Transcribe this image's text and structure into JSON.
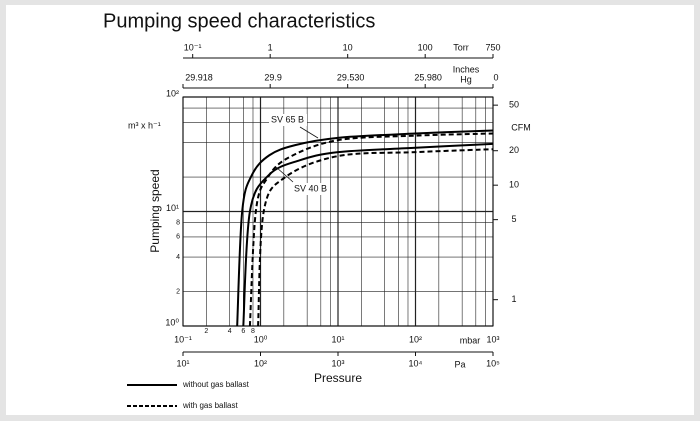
{
  "chart_data": {
    "type": "line",
    "title": "Pumping speed characteristics",
    "y_label": "Pumping speed",
    "y_unit": "m³ x h⁻¹",
    "x_label": "Pressure",
    "x_unit": "mbar",
    "log_x": true,
    "log_y": true,
    "grid": true,
    "xlim": [
      0.1,
      1000
    ],
    "xticks": [
      {
        "value": 0.1,
        "label": "10⁻¹"
      },
      {
        "value": 0.2,
        "label": "2"
      },
      {
        "value": 0.4,
        "label": "4"
      },
      {
        "value": 0.6,
        "label": "6"
      },
      {
        "value": 0.8,
        "label": "8"
      },
      {
        "value": 1,
        "label": "10⁰"
      },
      {
        "value": 10,
        "label": "10¹"
      },
      {
        "value": 100,
        "label": "10²"
      },
      {
        "value": 1000,
        "label": "10³"
      }
    ],
    "xgrid": [
      2,
      4,
      6,
      8,
      20,
      40,
      60,
      80,
      200,
      400,
      600,
      800
    ],
    "ylim": [
      1,
      100
    ],
    "yticks": [
      {
        "value": 1,
        "label": "10⁰"
      },
      2,
      4,
      6,
      8,
      {
        "value": 10,
        "label": "10¹"
      },
      {
        "value": 100,
        "label": "10²"
      }
    ],
    "ygrid": [
      20,
      40,
      60,
      80
    ],
    "y2_unit": "CFM",
    "y2lim": [
      0.589,
      58.9
    ],
    "y2ticks": [
      1,
      5,
      10,
      20,
      50
    ],
    "torr_unit": "Torr",
    "torr_lim": [
      0.075,
      750
    ],
    "torr_ticks": [
      {
        "value": 0.1,
        "label": "10⁻¹"
      },
      1,
      10,
      100,
      750
    ],
    "inhg_unit": [
      "Inches",
      "Hg"
    ],
    "inhg_ticks": [
      29.918,
      29.9,
      {
        "value": 29.53,
        "label": "29.530"
      },
      {
        "value": 25.98,
        "label": "25.980"
      },
      0
    ],
    "pa_unit": "Pa",
    "pa_lim": [
      10,
      100000
    ],
    "pa_ticks": [
      {
        "value": 10,
        "label": "10¹"
      },
      {
        "value": 100,
        "label": "10²"
      },
      {
        "value": 1000,
        "label": "10³"
      },
      {
        "value": 10000,
        "label": "10⁴"
      },
      {
        "value": 100000,
        "label": "10⁵"
      }
    ],
    "annotations": [
      "SV 65 B",
      "SV 40 B"
    ],
    "legend": [
      {
        "label": "without gas ballast",
        "dash": "solid"
      },
      {
        "label": "with gas ballast",
        "dash": "dashed"
      }
    ],
    "series": [
      {
        "dash": "solid",
        "color": "#000000",
        "x": [
          0.5,
          0.58,
          0.78,
          1.3,
          2.8,
          10,
          100,
          1000
        ],
        "values": [
          1,
          10,
          21,
          31,
          38,
          44,
          48,
          51
        ]
      },
      {
        "dash": "dashed",
        "color": "#000000",
        "x": [
          0.73,
          0.87,
          1.25,
          2.4,
          10,
          100,
          1000
        ],
        "values": [
          1,
          10,
          20,
          30,
          42,
          46,
          48
        ]
      },
      {
        "dash": "solid",
        "color": "#000000",
        "x": [
          0.6,
          0.73,
          1.3,
          3.2,
          10,
          100,
          1000
        ],
        "values": [
          1,
          10,
          21,
          28,
          33,
          36,
          39
        ]
      },
      {
        "dash": "dashed",
        "color": "#000000",
        "x": [
          0.93,
          1.1,
          2.1,
          10,
          100,
          1000
        ],
        "values": [
          1,
          10,
          20,
          30.5,
          33,
          35
        ]
      }
    ]
  }
}
